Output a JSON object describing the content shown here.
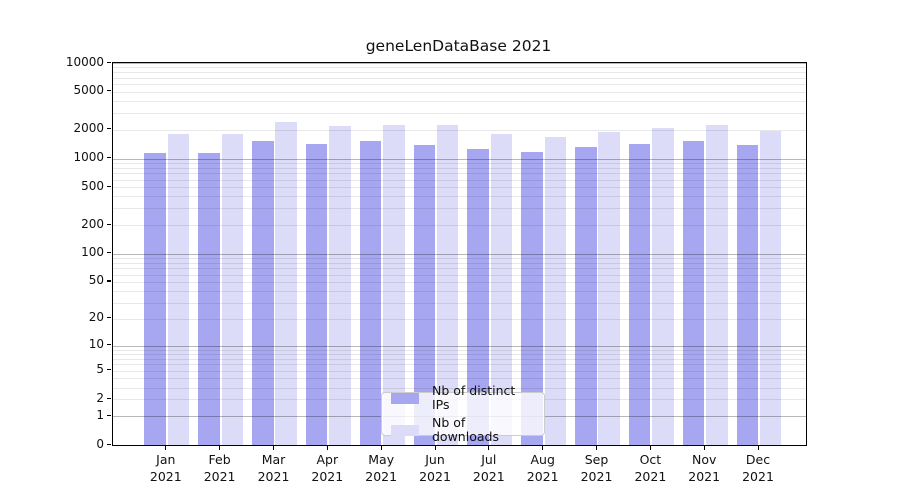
{
  "title": "geneLenDataBase 2021",
  "chart_data": {
    "type": "bar",
    "title": "geneLenDataBase 2021",
    "categories": [
      "Jan",
      "Feb",
      "Mar",
      "Apr",
      "May",
      "Jun",
      "Jul",
      "Aug",
      "Sep",
      "Oct",
      "Nov",
      "Dec"
    ],
    "year_label": "2021",
    "series": [
      {
        "name": "Nb of distinct IPs",
        "color": "#a7a7f1",
        "values": [
          1150,
          1140,
          1510,
          1420,
          1540,
          1390,
          1250,
          1160,
          1310,
          1410,
          1530,
          1390
        ]
      },
      {
        "name": "Nb of downloads",
        "color": "#dcdcf8",
        "values": [
          1820,
          1790,
          2430,
          2190,
          2260,
          2230,
          1820,
          1670,
          1880,
          2070,
          2240,
          1950
        ]
      }
    ],
    "xlabel": "",
    "ylabel": "",
    "yscale": "log1p",
    "ylim": [
      0,
      10000
    ],
    "ytick_values": [
      10000,
      5000,
      2000,
      1000,
      500,
      200,
      100,
      50,
      20,
      10,
      5,
      2,
      1,
      0
    ],
    "ytick_labels": [
      "10000",
      "5000",
      "2000",
      "1000",
      "500",
      "200",
      "100",
      "50",
      "20",
      "10",
      "5",
      "2",
      "1",
      "0"
    ],
    "major_grid_values": [
      1,
      10,
      100,
      1000,
      10000
    ],
    "grid": true,
    "legend_position": "lower center inside plot",
    "axis_color": "#000000",
    "background_color": "#ffffff"
  }
}
